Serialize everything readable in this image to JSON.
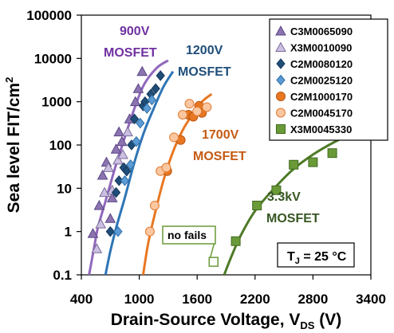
{
  "chart_data": {
    "type": "scatter",
    "xlabel": "Drain-Source Voltage, V",
    "xlabel_sub": "DS",
    "xlabel_unit": " (V)",
    "ylabel": "Sea level FIT/cm",
    "ylabel_sup": "2",
    "xlim": [
      400,
      3400
    ],
    "ylim": [
      0.1,
      100000
    ],
    "yscale": "log",
    "x_ticks": [
      400,
      1000,
      1600,
      2200,
      2800,
      3400
    ],
    "x_tick_labels": [
      "400",
      "1000",
      "1600",
      "2200",
      "2800",
      "3400"
    ],
    "y_ticks": [
      0.1,
      1,
      10,
      100,
      1000,
      10000,
      100000
    ],
    "y_tick_labels": [
      "0.1",
      "1",
      "10",
      "100",
      "1000",
      "10000",
      "100000"
    ],
    "grid": false,
    "legend_position": "top-right",
    "series": [
      {
        "name": "C3M0065090",
        "marker": "triangle",
        "fill": "#8b74b0",
        "stroke": "#5b4585",
        "points": [
          [
            520,
            0.9
          ],
          [
            585,
            4
          ],
          [
            620,
            20
          ],
          [
            660,
            40
          ],
          [
            700,
            2
          ],
          [
            720,
            6
          ],
          [
            760,
            80
          ],
          [
            790,
            200
          ],
          [
            820,
            120
          ],
          [
            900,
            400
          ],
          [
            960,
            1000
          ],
          [
            990,
            2000
          ],
          [
            1030,
            5000
          ]
        ]
      },
      {
        "name": "X3M0010090",
        "marker": "triangle",
        "fill": "#ccc0e2",
        "stroke": "#7a6a9a",
        "points": [
          [
            560,
            0.4
          ],
          [
            600,
            1.5
          ],
          [
            640,
            8
          ],
          [
            680,
            30
          ],
          [
            720,
            9
          ],
          [
            780,
            45
          ],
          [
            830,
            60
          ],
          [
            880,
            200
          ]
        ]
      },
      {
        "name": "C2M0080120",
        "marker": "diamond",
        "fill": "#1f4e79",
        "stroke": "#14365a",
        "points": [
          [
            700,
            1
          ],
          [
            760,
            8
          ],
          [
            790,
            15
          ],
          [
            840,
            30
          ],
          [
            870,
            25
          ],
          [
            920,
            100
          ],
          [
            950,
            400
          ],
          [
            1040,
            800
          ],
          [
            1060,
            1000
          ],
          [
            1120,
            1500
          ],
          [
            1170,
            2000
          ],
          [
            1220,
            4000
          ]
        ]
      },
      {
        "name": "C2M0025120",
        "marker": "diamond",
        "fill": "#5b9bd5",
        "stroke": "#2e6da4",
        "points": [
          [
            780,
            1
          ],
          [
            850,
            15
          ],
          [
            910,
            35
          ],
          [
            970,
            120
          ],
          [
            1010,
            320
          ],
          [
            1080,
            700
          ],
          [
            1130,
            1100
          ]
        ]
      },
      {
        "name": "C2M1000170",
        "marker": "circle",
        "fill": "#e87722",
        "stroke": "#b85510",
        "points": [
          [
            1290,
            25
          ],
          [
            1430,
            130
          ],
          [
            1510,
            500
          ],
          [
            1560,
            450
          ],
          [
            1620,
            800
          ],
          [
            1650,
            550
          ]
        ]
      },
      {
        "name": "C2M0045170",
        "marker": "circle",
        "fill": "#fbc7a0",
        "stroke": "#e07a30",
        "points": [
          [
            1110,
            1
          ],
          [
            1160,
            4
          ],
          [
            1220,
            25
          ],
          [
            1280,
            30
          ],
          [
            1360,
            150
          ],
          [
            1450,
            500
          ],
          [
            1520,
            900
          ],
          [
            1600,
            600
          ],
          [
            1700,
            750
          ]
        ]
      },
      {
        "name": "X3M0045330",
        "marker": "square",
        "fill": "#6a9a38",
        "stroke": "#3f6a1e",
        "points": [
          [
            2000,
            0.6
          ],
          [
            2220,
            4
          ],
          [
            2420,
            9
          ],
          [
            2600,
            35
          ],
          [
            2800,
            40
          ],
          [
            3000,
            65
          ],
          [
            3220,
            180
          ]
        ]
      }
    ],
    "fit_curves": [
      {
        "color": "#9168bd",
        "points": [
          [
            480,
            0.1
          ],
          [
            530,
            0.4
          ],
          [
            570,
            1.2
          ],
          [
            650,
            5
          ],
          [
            750,
            30
          ],
          [
            850,
            150
          ],
          [
            950,
            700
          ],
          [
            1050,
            2500
          ],
          [
            1180,
            6000
          ],
          [
            1300,
            9000
          ]
        ]
      },
      {
        "color": "#2e75b6",
        "points": [
          [
            650,
            0.1
          ],
          [
            700,
            0.35
          ],
          [
            760,
            1.2
          ],
          [
            850,
            6
          ],
          [
            950,
            40
          ],
          [
            1050,
            200
          ],
          [
            1150,
            700
          ],
          [
            1250,
            2200
          ],
          [
            1350,
            5000
          ]
        ]
      },
      {
        "color": "#e87722",
        "points": [
          [
            1040,
            0.1
          ],
          [
            1090,
            0.5
          ],
          [
            1150,
            2
          ],
          [
            1250,
            15
          ],
          [
            1350,
            70
          ],
          [
            1450,
            220
          ],
          [
            1550,
            500
          ],
          [
            1650,
            1000
          ],
          [
            1750,
            1500
          ]
        ]
      },
      {
        "color": "#4f7a28",
        "points": [
          [
            1880,
            0.1
          ],
          [
            1950,
            0.25
          ],
          [
            2050,
            0.8
          ],
          [
            2200,
            3
          ],
          [
            2400,
            10
          ],
          [
            2600,
            28
          ],
          [
            2800,
            60
          ],
          [
            3000,
            110
          ],
          [
            3200,
            180
          ],
          [
            3400,
            260
          ]
        ]
      }
    ],
    "annotations": [
      {
        "id": "900",
        "lines": [
          "900V",
          "MOSFET"
        ],
        "color": "#7030a0"
      },
      {
        "id": "1200",
        "lines": [
          "1200V",
          "MOSFET"
        ],
        "color": "#1f4e79"
      },
      {
        "id": "1700",
        "lines": [
          "1700V",
          "MOSFET"
        ],
        "color": "#c55a11"
      },
      {
        "id": "3300",
        "lines": [
          "3.3kV",
          "MOSFET"
        ],
        "color": "#375623"
      }
    ],
    "no_fails": {
      "label": "no fails",
      "point": [
        1770,
        0.2
      ],
      "color": "#6a9a38"
    },
    "tj_box": {
      "prefix": "T",
      "sub": "J",
      "suffix": " = 25 °C"
    }
  }
}
